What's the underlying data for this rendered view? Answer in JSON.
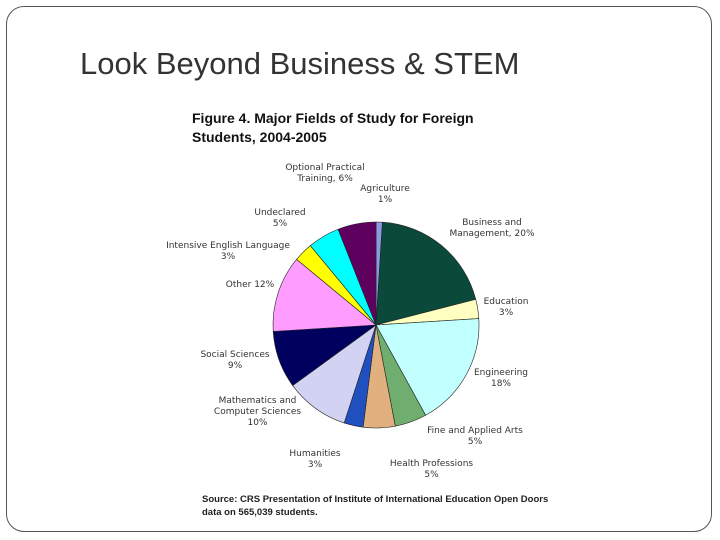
{
  "slide_title": "Look Beyond Business & STEM",
  "chart_data": {
    "type": "pie",
    "title": "Figure 4.  Major Fields of Study for Foreign Students, 2004-2005",
    "categories": [
      "Agriculture",
      "Business and Management,",
      "Education",
      "Engineering",
      "Fine and Applied Arts",
      "Health Professions",
      "Humanities",
      "Mathematics and Computer Sciences",
      "Social Sciences",
      "Other",
      "Intensive English Language",
      "Undeclared",
      "Optional Practical Training,"
    ],
    "values": [
      1,
      20,
      3,
      18,
      5,
      5,
      3,
      10,
      9,
      12,
      3,
      5,
      6
    ],
    "value_labels": [
      "1%",
      "20%",
      "3%",
      "18%",
      "5%",
      "5%",
      "3%",
      "10%",
      "9%",
      "12%",
      "3%",
      "5%",
      "6%"
    ],
    "colors": [
      "#8a9ae0",
      "#0b4a3b",
      "#ffffc2",
      "#c2ffff",
      "#6fae6f",
      "#e0b07e",
      "#2050c0",
      "#d2d2f2",
      "#00005e",
      "#ff9cff",
      "#ffff00",
      "#00ffff",
      "#5e005e"
    ],
    "source": "Source: CRS Presentation of Institute of International Education Open Doors data on 565,039 students."
  }
}
